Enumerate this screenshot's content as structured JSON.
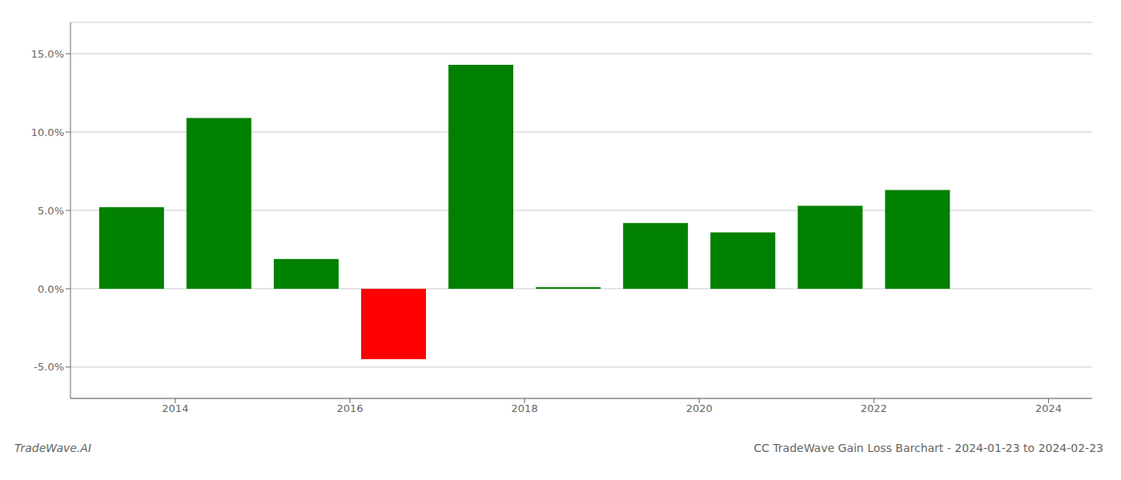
{
  "chart_data": {
    "type": "bar",
    "title": "CC TradeWave Gain Loss Barchart - 2024-01-23 to 2024-02-23",
    "annotations": [
      "TradeWave.AI"
    ],
    "x": [
      2013.5,
      2014.5,
      2015.5,
      2016.5,
      2017.5,
      2018.5,
      2019.5,
      2020.5,
      2021.5,
      2022.5
    ],
    "values": [
      5.2,
      10.9,
      1.9,
      -4.5,
      14.3,
      0.1,
      4.2,
      3.6,
      5.3,
      6.3
    ],
    "colors": [
      "#008000",
      "#008000",
      "#008000",
      "#ff0000",
      "#008000",
      "#008000",
      "#008000",
      "#008000",
      "#008000",
      "#008000"
    ],
    "xlim": [
      2012.8,
      2024.5
    ],
    "xticks": [
      2014,
      2016,
      2018,
      2020,
      2022,
      2024
    ],
    "ylim": [
      -7.0,
      17.0
    ],
    "yticks": [
      {
        "value": -5.0,
        "label": "-5.0%"
      },
      {
        "value": 0.0,
        "label": "0.0%"
      },
      {
        "value": 5.0,
        "label": "5.0%"
      },
      {
        "value": 10.0,
        "label": "10.0%"
      },
      {
        "value": 15.0,
        "label": "15.0%"
      }
    ],
    "grid": true
  }
}
